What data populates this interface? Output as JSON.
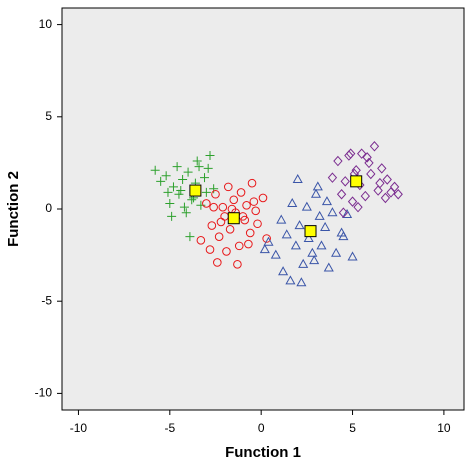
{
  "chart_data": {
    "type": "scatter",
    "x_label": "Function 1",
    "y_label": "Function 2",
    "xlim": [
      -10.9,
      11.1
    ],
    "ylim": [
      -10.9,
      10.9
    ],
    "xticks": [
      -10,
      -5,
      0,
      5,
      10
    ],
    "yticks": [
      -10,
      -5,
      0,
      5,
      10
    ],
    "grid": false,
    "series": [
      {
        "color": "#2ca02c",
        "marker": "plus",
        "x": [
          -5.8,
          -5.5,
          -5.2,
          -5.0,
          -4.8,
          -4.6,
          -4.5,
          -4.3,
          -4.1,
          -4.0,
          -3.8,
          -3.6,
          -3.5,
          -3.3,
          -3.1,
          -3.0,
          -2.8,
          -2.6,
          -4.9,
          -4.4,
          -3.9,
          -3.4,
          -5.1,
          -4.2,
          -2.9,
          -3.7
        ],
        "values": [
          2.1,
          1.5,
          1.8,
          0.3,
          1.2,
          2.3,
          0.8,
          1.6,
          -0.2,
          2.0,
          0.5,
          1.4,
          2.6,
          0.2,
          1.7,
          0.9,
          2.9,
          1.1,
          -0.4,
          1.0,
          -1.5,
          2.3,
          0.9,
          0.1,
          2.2,
          0.6
        ]
      },
      {
        "color": "#e8191b",
        "marker": "circle",
        "x": [
          -3.0,
          -2.7,
          -2.5,
          -2.3,
          -2.1,
          -2.0,
          -1.8,
          -1.7,
          -1.5,
          -1.4,
          -1.2,
          -1.1,
          -0.9,
          -0.8,
          -0.6,
          -0.5,
          -0.3,
          -0.2,
          0.1,
          0.3,
          -2.4,
          -1.9,
          -1.3,
          -0.7,
          -2.6,
          -1.6,
          -1.0,
          -0.4,
          -2.2,
          -3.3,
          -2.8
        ],
        "values": [
          0.3,
          -0.9,
          0.8,
          -1.5,
          0.1,
          -0.4,
          1.2,
          -1.1,
          0.5,
          -0.2,
          -2.0,
          0.9,
          -0.6,
          0.2,
          -1.3,
          1.4,
          -0.1,
          -0.8,
          0.6,
          -1.6,
          -2.9,
          -2.3,
          -3.0,
          -1.9,
          0.1,
          0.0,
          -0.4,
          0.4,
          -0.7,
          -1.7,
          -2.2
        ]
      },
      {
        "color": "#3a55a8",
        "marker": "triangle",
        "x": [
          0.4,
          0.8,
          1.1,
          1.4,
          1.7,
          1.9,
          2.1,
          2.3,
          2.5,
          2.6,
          2.8,
          3.0,
          3.2,
          3.3,
          3.5,
          3.7,
          3.9,
          4.1,
          4.4,
          4.7,
          5.0,
          1.2,
          2.0,
          2.9,
          3.6,
          4.5,
          2.2,
          3.1,
          0.2,
          1.6
        ],
        "values": [
          -1.8,
          -2.5,
          -0.6,
          -1.4,
          0.3,
          -2.0,
          -0.9,
          -3.0,
          0.1,
          -1.6,
          -2.4,
          0.8,
          -0.4,
          -2.0,
          -1.0,
          -3.2,
          -0.2,
          -2.4,
          -1.3,
          -0.3,
          -2.6,
          -3.4,
          1.6,
          -2.8,
          0.4,
          -1.5,
          -4.0,
          1.2,
          -2.2,
          -3.9
        ]
      },
      {
        "color": "#7b2d90",
        "marker": "diamond",
        "x": [
          3.9,
          4.2,
          4.4,
          4.6,
          4.8,
          5.0,
          5.2,
          5.4,
          5.5,
          5.7,
          5.9,
          6.0,
          6.2,
          6.4,
          6.6,
          6.9,
          7.1,
          7.3,
          7.5,
          4.5,
          5.1,
          5.8,
          6.5,
          4.9,
          6.8,
          5.3
        ],
        "values": [
          1.7,
          2.6,
          0.8,
          1.5,
          2.9,
          0.4,
          2.1,
          1.3,
          3.0,
          0.7,
          2.5,
          1.9,
          3.4,
          1.0,
          2.2,
          1.6,
          0.9,
          1.2,
          0.8,
          -0.2,
          1.9,
          2.8,
          1.4,
          3.0,
          0.6,
          0.1
        ]
      },
      {
        "color": "#ffff00",
        "marker": "square",
        "x": [
          -3.6,
          -1.5,
          2.7,
          5.2
        ],
        "values": [
          1.0,
          -0.5,
          -1.2,
          1.5
        ]
      }
    ]
  }
}
